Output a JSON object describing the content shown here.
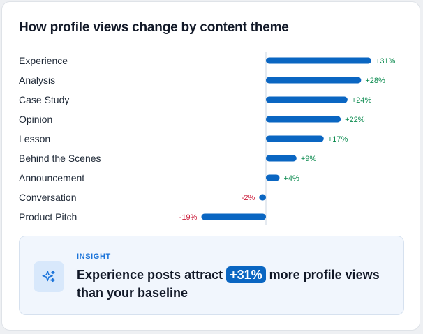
{
  "card": {
    "title": "How profile views change by content theme"
  },
  "chart_data": {
    "type": "bar",
    "orientation": "horizontal",
    "title": "How profile views change by content theme",
    "categories": [
      "Experience",
      "Analysis",
      "Case Study",
      "Opinion",
      "Lesson",
      "Behind the Scenes",
      "Announcement",
      "Conversation",
      "Product Pitch"
    ],
    "values": [
      31,
      28,
      24,
      22,
      17,
      9,
      4,
      -2,
      -19
    ],
    "value_labels": [
      "+31%",
      "+28%",
      "+24%",
      "+22%",
      "+17%",
      "+9%",
      "+4%",
      "-2%",
      "-19%"
    ],
    "unit": "%",
    "xlim": [
      -21,
      31
    ],
    "colors": {
      "bar": "#0a66c2",
      "positive_label": "#0a8a4e",
      "negative_label": "#cc1f3c",
      "axis": "#cbd5e1"
    }
  },
  "insight": {
    "tag": "INSIGHT",
    "text_before": "Experience posts attract ",
    "highlight": "+31%",
    "text_after": " more profile views than your baseline",
    "icon": "sparkle-icon"
  }
}
